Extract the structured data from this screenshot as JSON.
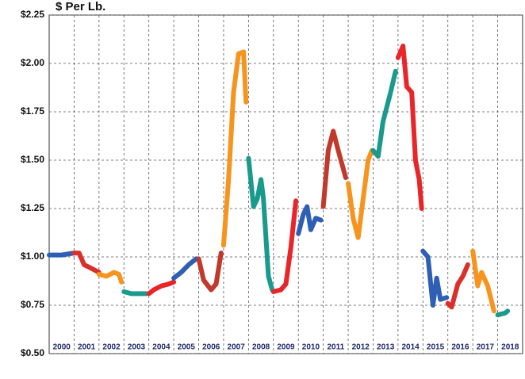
{
  "chart_data": {
    "type": "line",
    "y_label": "$ Per Lb.",
    "categories": [
      "2000",
      "2001",
      "2002",
      "2003",
      "2004",
      "2005",
      "2006",
      "2007",
      "2008",
      "2009",
      "2010",
      "2011",
      "2012",
      "2013",
      "2014",
      "2015",
      "2016",
      "2017",
      "2018"
    ],
    "xlim": [
      2000,
      2019
    ],
    "ylim": [
      0.5,
      2.25
    ],
    "yticks": [
      {
        "value": 0.5,
        "label": "$0.50"
      },
      {
        "value": 0.75,
        "label": "$0.75"
      },
      {
        "value": 1.0,
        "label": "$1.00"
      },
      {
        "value": 1.25,
        "label": "$1.25"
      },
      {
        "value": 1.5,
        "label": "$1.50"
      },
      {
        "value": 1.75,
        "label": "$1.75"
      },
      {
        "value": 2.0,
        "label": "$2.00"
      },
      {
        "value": 2.25,
        "label": "$2.25"
      }
    ],
    "grid": true,
    "series": [
      {
        "color": "#2e5fb5",
        "x": [
          2000.0,
          2000.5,
          2001.0
        ],
        "values": [
          1.01,
          1.01,
          1.02
        ]
      },
      {
        "color": "#d9302c",
        "x": [
          2001.0,
          2001.2,
          2001.4,
          2001.7,
          2002.0
        ],
        "values": [
          1.02,
          1.02,
          0.96,
          0.94,
          0.92
        ]
      },
      {
        "color": "#f7941d",
        "x": [
          2002.0,
          2002.3,
          2002.6,
          2002.8,
          2002.9
        ],
        "values": [
          0.91,
          0.9,
          0.92,
          0.91,
          0.87
        ]
      },
      {
        "color": "#1a9a8c",
        "x": [
          2003.0,
          2003.3,
          2003.6,
          2003.9
        ],
        "values": [
          0.82,
          0.81,
          0.81,
          0.81
        ]
      },
      {
        "color": "#e8262a",
        "x": [
          2004.0,
          2004.2,
          2004.5,
          2004.8,
          2005.0
        ],
        "values": [
          0.81,
          0.83,
          0.85,
          0.86,
          0.87
        ]
      },
      {
        "color": "#2e5fb5",
        "x": [
          2005.0,
          2005.3,
          2005.6,
          2005.9
        ],
        "values": [
          0.89,
          0.92,
          0.96,
          0.99
        ]
      },
      {
        "color": "#c0392b",
        "x": [
          2006.0,
          2006.2,
          2006.5,
          2006.7,
          2006.9
        ],
        "values": [
          0.99,
          0.88,
          0.83,
          0.86,
          1.02
        ]
      },
      {
        "color": "#f7941d",
        "x": [
          2007.0,
          2007.2,
          2007.4,
          2007.6,
          2007.8,
          2007.9
        ],
        "values": [
          1.06,
          1.4,
          1.85,
          2.05,
          2.06,
          1.8
        ]
      },
      {
        "color": "#1a9a8c",
        "x": [
          2008.0,
          2008.2,
          2008.35,
          2008.5,
          2008.6,
          2008.8,
          2008.95
        ],
        "values": [
          1.51,
          1.26,
          1.3,
          1.4,
          1.3,
          0.9,
          0.83
        ]
      },
      {
        "color": "#e8262a",
        "x": [
          2009.0,
          2009.3,
          2009.5,
          2009.7,
          2009.9
        ],
        "values": [
          0.82,
          0.83,
          0.86,
          1.05,
          1.29
        ]
      },
      {
        "color": "#2e5fb5",
        "x": [
          2010.0,
          2010.2,
          2010.35,
          2010.5,
          2010.7,
          2010.9
        ],
        "values": [
          1.12,
          1.22,
          1.26,
          1.14,
          1.2,
          1.19
        ]
      },
      {
        "color": "#c0392b",
        "x": [
          2011.0,
          2011.2,
          2011.4,
          2011.6,
          2011.9
        ],
        "values": [
          1.26,
          1.55,
          1.65,
          1.55,
          1.41
        ]
      },
      {
        "color": "#f7941d",
        "x": [
          2012.0,
          2012.2,
          2012.4,
          2012.6,
          2012.8,
          2012.95
        ],
        "values": [
          1.38,
          1.2,
          1.1,
          1.3,
          1.5,
          1.55
        ]
      },
      {
        "color": "#1a9a8c",
        "x": [
          2013.0,
          2013.2,
          2013.4,
          2013.7,
          2013.9
        ],
        "values": [
          1.55,
          1.52,
          1.7,
          1.85,
          1.96
        ]
      },
      {
        "color": "#e8262a",
        "x": [
          2014.0,
          2014.2,
          2014.35,
          2014.55,
          2014.7,
          2014.85,
          2014.95
        ],
        "values": [
          2.03,
          2.09,
          1.88,
          1.85,
          1.5,
          1.4,
          1.25
        ]
      },
      {
        "color": "#2e5fb5",
        "x": [
          2015.0,
          2015.2,
          2015.4,
          2015.55,
          2015.7,
          2015.95
        ],
        "values": [
          1.03,
          1.0,
          0.75,
          0.89,
          0.78,
          0.79
        ]
      },
      {
        "color": "#d9302c",
        "x": [
          2016.0,
          2016.15,
          2016.4,
          2016.6,
          2016.8
        ],
        "values": [
          0.76,
          0.74,
          0.86,
          0.9,
          0.96
        ]
      },
      {
        "color": "#f7941d",
        "x": [
          2017.0,
          2017.2,
          2017.35,
          2017.6,
          2017.85
        ],
        "values": [
          1.03,
          0.85,
          0.92,
          0.85,
          0.72
        ]
      },
      {
        "color": "#1a9a8c",
        "x": [
          2018.0,
          2018.3,
          2018.4
        ],
        "values": [
          0.7,
          0.71,
          0.72
        ]
      }
    ]
  }
}
